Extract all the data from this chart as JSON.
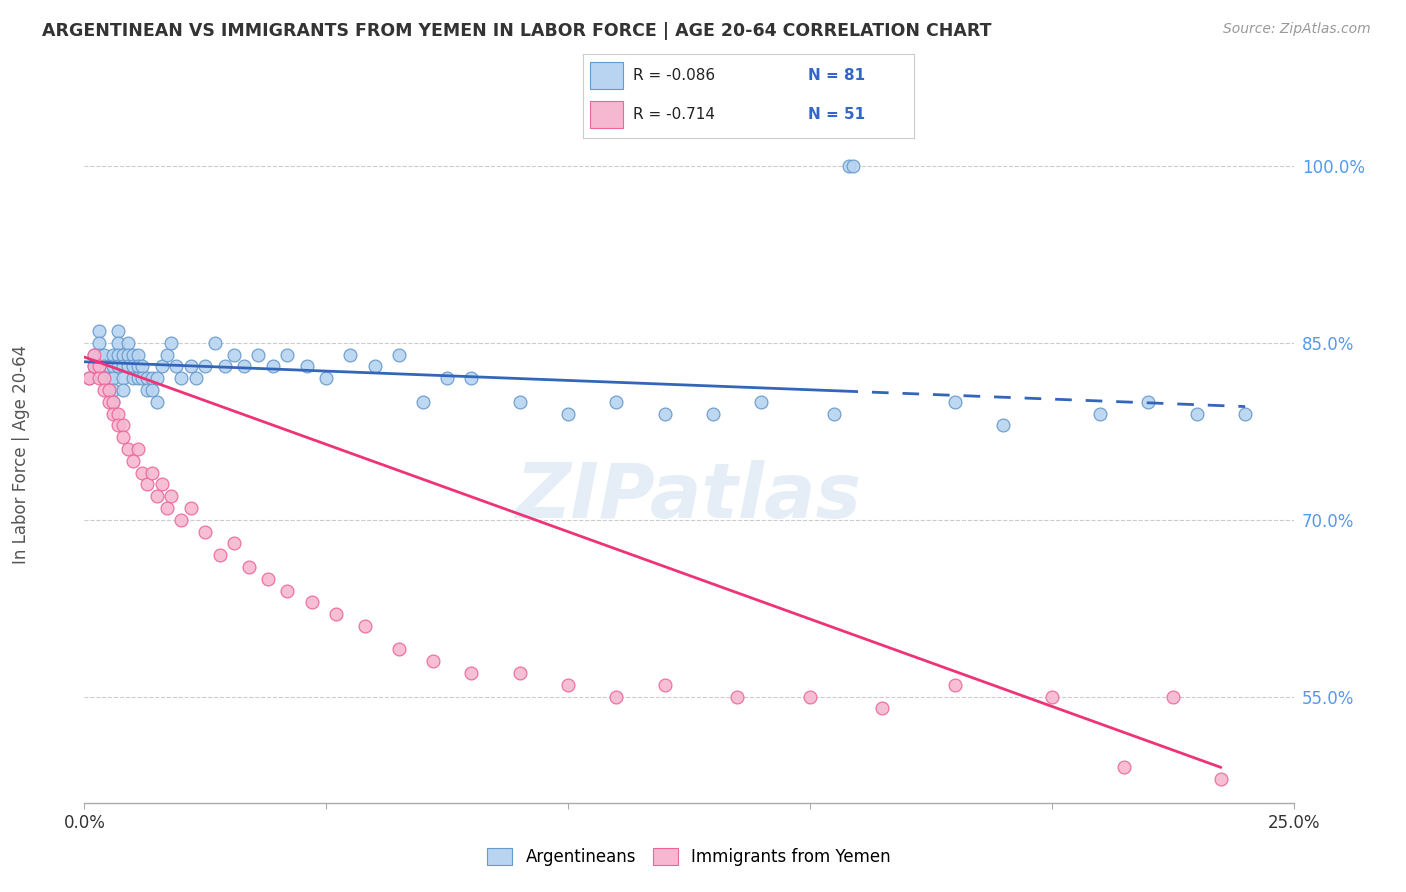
{
  "title": "ARGENTINEAN VS IMMIGRANTS FROM YEMEN IN LABOR FORCE | AGE 20-64 CORRELATION CHART",
  "source": "Source: ZipAtlas.com",
  "ylabel": "In Labor Force | Age 20-64",
  "y_ticks": [
    0.55,
    0.7,
    0.85,
    1.0
  ],
  "y_tick_labels": [
    "55.0%",
    "70.0%",
    "85.0%",
    "100.0%"
  ],
  "xlim": [
    0.0,
    0.25
  ],
  "ylim": [
    0.46,
    1.05
  ],
  "blue_R": "-0.086",
  "blue_N": "81",
  "pink_R": "-0.714",
  "pink_N": "51",
  "blue_color": "#b8d4f0",
  "pink_color": "#f5b8d0",
  "blue_edge_color": "#6699cc",
  "pink_edge_color": "#ee6699",
  "blue_line_color": "#3366bb",
  "pink_line_color": "#ee3377",
  "legend_label_blue": "Argentineans",
  "legend_label_pink": "Immigrants from Yemen",
  "blue_scatter_x": [
    0.001,
    0.002,
    0.002,
    0.003,
    0.003,
    0.003,
    0.004,
    0.004,
    0.004,
    0.005,
    0.005,
    0.005,
    0.005,
    0.006,
    0.006,
    0.006,
    0.006,
    0.006,
    0.007,
    0.007,
    0.007,
    0.007,
    0.008,
    0.008,
    0.008,
    0.008,
    0.009,
    0.009,
    0.009,
    0.01,
    0.01,
    0.01,
    0.011,
    0.011,
    0.011,
    0.012,
    0.012,
    0.013,
    0.013,
    0.014,
    0.014,
    0.015,
    0.015,
    0.016,
    0.017,
    0.018,
    0.019,
    0.02,
    0.022,
    0.023,
    0.025,
    0.027,
    0.029,
    0.031,
    0.033,
    0.036,
    0.039,
    0.042,
    0.046,
    0.05,
    0.055,
    0.06,
    0.065,
    0.07,
    0.075,
    0.08,
    0.09,
    0.1,
    0.11,
    0.12,
    0.13,
    0.14,
    0.155,
    0.158,
    0.159,
    0.18,
    0.19,
    0.21,
    0.22,
    0.23,
    0.24
  ],
  "blue_scatter_y": [
    0.82,
    0.84,
    0.83,
    0.86,
    0.85,
    0.84,
    0.84,
    0.83,
    0.82,
    0.83,
    0.82,
    0.81,
    0.83,
    0.84,
    0.83,
    0.82,
    0.81,
    0.8,
    0.86,
    0.85,
    0.84,
    0.83,
    0.84,
    0.83,
    0.82,
    0.81,
    0.85,
    0.84,
    0.83,
    0.84,
    0.83,
    0.82,
    0.84,
    0.83,
    0.82,
    0.83,
    0.82,
    0.82,
    0.81,
    0.82,
    0.81,
    0.82,
    0.8,
    0.83,
    0.84,
    0.85,
    0.83,
    0.82,
    0.83,
    0.82,
    0.83,
    0.85,
    0.83,
    0.84,
    0.83,
    0.84,
    0.83,
    0.84,
    0.83,
    0.82,
    0.84,
    0.83,
    0.84,
    0.8,
    0.82,
    0.82,
    0.8,
    0.79,
    0.8,
    0.79,
    0.79,
    0.8,
    0.79,
    1.0,
    1.0,
    0.8,
    0.78,
    0.79,
    0.8,
    0.79,
    0.79
  ],
  "pink_scatter_x": [
    0.001,
    0.002,
    0.002,
    0.003,
    0.003,
    0.004,
    0.004,
    0.005,
    0.005,
    0.006,
    0.006,
    0.007,
    0.007,
    0.008,
    0.008,
    0.009,
    0.01,
    0.011,
    0.012,
    0.013,
    0.014,
    0.015,
    0.016,
    0.017,
    0.018,
    0.02,
    0.022,
    0.025,
    0.028,
    0.031,
    0.034,
    0.038,
    0.042,
    0.047,
    0.052,
    0.058,
    0.065,
    0.072,
    0.08,
    0.09,
    0.1,
    0.11,
    0.12,
    0.135,
    0.15,
    0.165,
    0.18,
    0.2,
    0.215,
    0.225,
    0.235
  ],
  "pink_scatter_y": [
    0.82,
    0.84,
    0.83,
    0.83,
    0.82,
    0.82,
    0.81,
    0.81,
    0.8,
    0.8,
    0.79,
    0.79,
    0.78,
    0.78,
    0.77,
    0.76,
    0.75,
    0.76,
    0.74,
    0.73,
    0.74,
    0.72,
    0.73,
    0.71,
    0.72,
    0.7,
    0.71,
    0.69,
    0.67,
    0.68,
    0.66,
    0.65,
    0.64,
    0.63,
    0.62,
    0.61,
    0.59,
    0.58,
    0.57,
    0.57,
    0.56,
    0.55,
    0.56,
    0.55,
    0.55,
    0.54,
    0.56,
    0.55,
    0.49,
    0.55,
    0.48
  ]
}
